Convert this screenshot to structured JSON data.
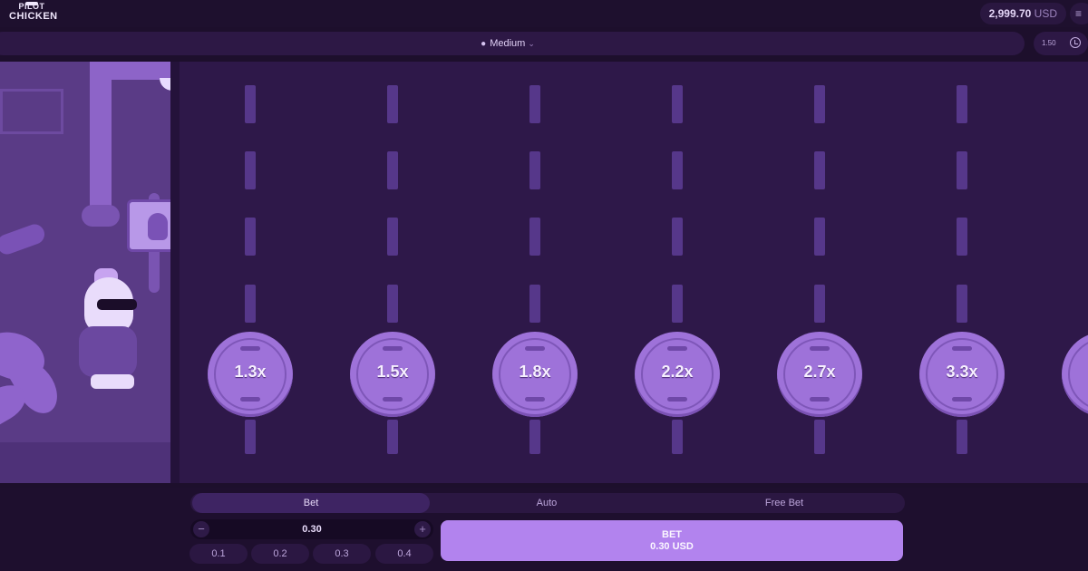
{
  "header": {
    "logo_top": "PILOT",
    "logo_bottom": "CHICKEN",
    "balance_amount": "2,999.70",
    "balance_currency": "USD",
    "menu_icon": "hamburger-menu-icon"
  },
  "difficulty": {
    "icon": "chicken-icon",
    "label": "Medium",
    "chevron": "chevron-down-icon"
  },
  "multiplier_chip": {
    "value": "1.50",
    "history_icon": "history-icon"
  },
  "lanes": [
    {
      "multiplier": "1.3x"
    },
    {
      "multiplier": "1.5x"
    },
    {
      "multiplier": "1.8x"
    },
    {
      "multiplier": "2.2x"
    },
    {
      "multiplier": "2.7x"
    },
    {
      "multiplier": "3.3x"
    },
    {
      "multiplier": ""
    }
  ],
  "tabs": [
    {
      "label": "Bet",
      "active": true
    },
    {
      "label": "Auto",
      "active": false
    },
    {
      "label": "Free Bet",
      "active": false
    }
  ],
  "bet_amount": {
    "value": "0.30",
    "minus": "−",
    "plus": "+"
  },
  "quick_amounts": [
    "0.1",
    "0.2",
    "0.3",
    "0.4"
  ],
  "bet_button": {
    "label": "BET",
    "amount": "0.30 USD"
  },
  "colors": {
    "background": "#1d0f2c",
    "lane_bg": "#2e1849",
    "tile": "#9e72d9",
    "accent_button": "#b283ee"
  }
}
